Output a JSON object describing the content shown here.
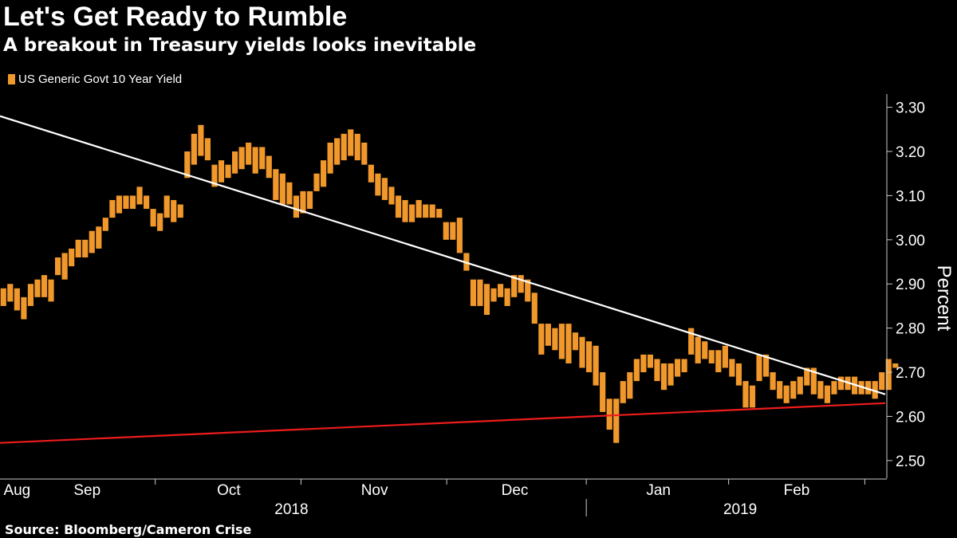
{
  "title": "Let's Get Ready to Rumble",
  "subtitle": "A breakout in Treasury yields looks inevitable",
  "source": "Source: Bloomberg/Cameron Crise",
  "colors": {
    "bar": "#f0982b",
    "resistance_line": "#ffffff",
    "support_line": "#ee1c1c",
    "background": "#000000",
    "axis": "#cccccc"
  },
  "chart_data": {
    "type": "bar",
    "subtype": "floating-range (weekly high-low)",
    "series": [
      {
        "name": "US Generic Govt 10 Year Yield",
        "ranges": [
          [
            2.85,
            2.89
          ],
          [
            2.86,
            2.9
          ],
          [
            2.84,
            2.89
          ],
          [
            2.82,
            2.87
          ],
          [
            2.85,
            2.9
          ],
          [
            2.87,
            2.91
          ],
          [
            2.87,
            2.92
          ],
          [
            2.86,
            2.91
          ],
          [
            2.92,
            2.96
          ],
          [
            2.91,
            2.97
          ],
          [
            2.94,
            2.98
          ],
          [
            2.96,
            3.0
          ],
          [
            2.96,
            3.0
          ],
          [
            2.97,
            3.02
          ],
          [
            2.98,
            3.03
          ],
          [
            3.02,
            3.05
          ],
          [
            3.05,
            3.09
          ],
          [
            3.06,
            3.1
          ],
          [
            3.07,
            3.1
          ],
          [
            3.07,
            3.1
          ],
          [
            3.08,
            3.12
          ],
          [
            3.07,
            3.1
          ],
          [
            3.03,
            3.07
          ],
          [
            3.02,
            3.06
          ],
          [
            3.05,
            3.1
          ],
          [
            3.04,
            3.09
          ],
          [
            3.05,
            3.08
          ],
          [
            3.14,
            3.2
          ],
          [
            3.17,
            3.24
          ],
          [
            3.19,
            3.26
          ],
          [
            3.18,
            3.23
          ],
          [
            3.12,
            3.17
          ],
          [
            3.13,
            3.18
          ],
          [
            3.14,
            3.17
          ],
          [
            3.15,
            3.2
          ],
          [
            3.16,
            3.21
          ],
          [
            3.17,
            3.22
          ],
          [
            3.15,
            3.21
          ],
          [
            3.16,
            3.21
          ],
          [
            3.14,
            3.19
          ],
          [
            3.09,
            3.16
          ],
          [
            3.08,
            3.15
          ],
          [
            3.08,
            3.13
          ],
          [
            3.05,
            3.1
          ],
          [
            3.06,
            3.11
          ],
          [
            3.07,
            3.11
          ],
          [
            3.11,
            3.15
          ],
          [
            3.12,
            3.18
          ],
          [
            3.15,
            3.22
          ],
          [
            3.17,
            3.23
          ],
          [
            3.18,
            3.24
          ],
          [
            3.19,
            3.25
          ],
          [
            3.18,
            3.24
          ],
          [
            3.17,
            3.22
          ],
          [
            3.13,
            3.17
          ],
          [
            3.1,
            3.15
          ],
          [
            3.09,
            3.14
          ],
          [
            3.08,
            3.12
          ],
          [
            3.05,
            3.1
          ],
          [
            3.04,
            3.09
          ],
          [
            3.04,
            3.08
          ],
          [
            3.05,
            3.09
          ],
          [
            3.05,
            3.08
          ],
          [
            3.05,
            3.08
          ],
          [
            3.05,
            3.07
          ],
          [
            3.0,
            3.04
          ],
          [
            3.0,
            3.04
          ],
          [
            2.97,
            3.05
          ],
          [
            2.93,
            2.97
          ],
          [
            2.85,
            2.91
          ],
          [
            2.85,
            2.91
          ],
          [
            2.83,
            2.9
          ],
          [
            2.86,
            2.89
          ],
          [
            2.87,
            2.9
          ],
          [
            2.85,
            2.89
          ],
          [
            2.87,
            2.92
          ],
          [
            2.88,
            2.92
          ],
          [
            2.86,
            2.91
          ],
          [
            2.81,
            2.88
          ],
          [
            2.74,
            2.81
          ],
          [
            2.76,
            2.81
          ],
          [
            2.75,
            2.8
          ],
          [
            2.73,
            2.81
          ],
          [
            2.72,
            2.81
          ],
          [
            2.75,
            2.79
          ],
          [
            2.71,
            2.78
          ],
          [
            2.7,
            2.77
          ],
          [
            2.67,
            2.76
          ],
          [
            2.61,
            2.7
          ],
          [
            2.57,
            2.64
          ],
          [
            2.54,
            2.64
          ],
          [
            2.63,
            2.68
          ],
          [
            2.64,
            2.7
          ],
          [
            2.68,
            2.73
          ],
          [
            2.7,
            2.74
          ],
          [
            2.71,
            2.74
          ],
          [
            2.68,
            2.73
          ],
          [
            2.66,
            2.72
          ],
          [
            2.67,
            2.72
          ],
          [
            2.69,
            2.73
          ],
          [
            2.7,
            2.73
          ],
          [
            2.74,
            2.8
          ],
          [
            2.72,
            2.78
          ],
          [
            2.73,
            2.77
          ],
          [
            2.72,
            2.75
          ],
          [
            2.7,
            2.75
          ],
          [
            2.71,
            2.76
          ],
          [
            2.69,
            2.73
          ],
          [
            2.67,
            2.72
          ],
          [
            2.62,
            2.68
          ],
          [
            2.62,
            2.67
          ],
          [
            2.68,
            2.74
          ],
          [
            2.69,
            2.74
          ],
          [
            2.66,
            2.7
          ],
          [
            2.64,
            2.68
          ],
          [
            2.63,
            2.67
          ],
          [
            2.64,
            2.68
          ],
          [
            2.65,
            2.69
          ],
          [
            2.67,
            2.71
          ],
          [
            2.65,
            2.71
          ],
          [
            2.64,
            2.68
          ],
          [
            2.63,
            2.67
          ],
          [
            2.65,
            2.68
          ],
          [
            2.66,
            2.69
          ],
          [
            2.66,
            2.69
          ],
          [
            2.65,
            2.69
          ],
          [
            2.65,
            2.68
          ],
          [
            2.65,
            2.68
          ],
          [
            2.64,
            2.68
          ],
          [
            2.66,
            2.7
          ],
          [
            2.66,
            2.73
          ],
          [
            2.71,
            2.72
          ]
        ]
      }
    ],
    "trendlines": [
      {
        "name": "resistance",
        "color": "#ffffff",
        "from": [
          0,
          3.28
        ],
        "to": [
          130,
          2.65
        ]
      },
      {
        "name": "support",
        "color": "#ee1c1c",
        "from": [
          0,
          2.54
        ],
        "to": [
          130,
          2.63
        ]
      }
    ],
    "ylabel": "Percent",
    "ylim": [
      2.46,
      3.33
    ],
    "yticks": [
      {
        "value": 3.3,
        "label": "3.30"
      },
      {
        "value": 3.2,
        "label": "3.20"
      },
      {
        "value": 3.1,
        "label": "3.10"
      },
      {
        "value": 3.0,
        "label": "3.00"
      },
      {
        "value": 2.9,
        "label": "2.90"
      },
      {
        "value": 2.8,
        "label": "2.80"
      },
      {
        "value": 2.7,
        "label": "2.70"
      },
      {
        "value": 2.6,
        "label": "2.60"
      },
      {
        "value": 2.5,
        "label": "2.50"
      }
    ],
    "xlim": [
      0,
      130
    ],
    "month_labels": [
      {
        "label": "Aug",
        "pos": 2.5
      },
      {
        "label": "Sep",
        "pos": 12.8
      },
      {
        "label": "Oct",
        "pos": 33.6
      },
      {
        "label": "Nov",
        "pos": 55.0
      },
      {
        "label": "Dec",
        "pos": 75.6
      },
      {
        "label": "Jan",
        "pos": 96.7
      },
      {
        "label": "Feb",
        "pos": 117.0
      }
    ],
    "month_boundaries": [
      22.8,
      44.2,
      65.6,
      86.1,
      107.0,
      127.0
    ],
    "year_labels": [
      {
        "label": "2018",
        "pos": 42.8
      },
      {
        "label": "2019",
        "pos": 108.7
      }
    ],
    "year_boundary": 86.1
  }
}
